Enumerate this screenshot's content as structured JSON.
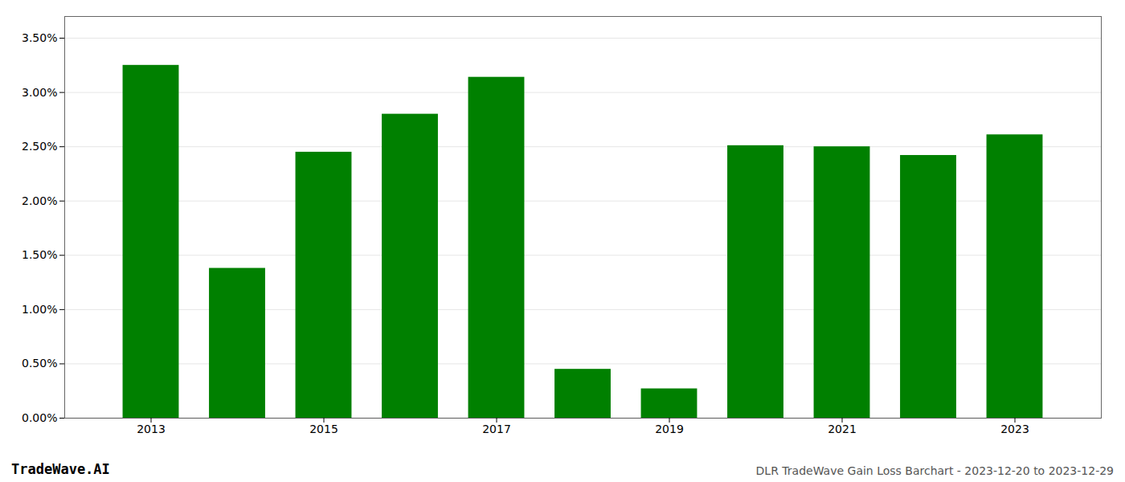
{
  "chart_data": {
    "type": "bar",
    "title": "DLR TradeWave Gain Loss Barchart - 2023-12-20 to 2023-12-29",
    "annotations": [
      "TradeWave.AI"
    ],
    "x": [
      2013,
      2014,
      2015,
      2016,
      2017,
      2018,
      2019,
      2020,
      2021,
      2022,
      2023
    ],
    "values": [
      0.0325,
      0.0138,
      0.0245,
      0.028,
      0.0314,
      0.0045,
      0.0027,
      0.0251,
      0.025,
      0.0242,
      0.0261
    ],
    "color": "#008000",
    "xlim": [
      2012.0,
      2024.0
    ],
    "xticks": [
      2013,
      2015,
      2017,
      2019,
      2021,
      2023
    ],
    "ylim": [
      0,
      0.037
    ],
    "yticks": [
      {
        "value": 0.0,
        "label": "0.00%"
      },
      {
        "value": 0.005,
        "label": "0.50%"
      },
      {
        "value": 0.01,
        "label": "1.00%"
      },
      {
        "value": 0.015,
        "label": "1.50%"
      },
      {
        "value": 0.02,
        "label": "2.00%"
      },
      {
        "value": 0.025,
        "label": "2.50%"
      },
      {
        "value": 0.03,
        "label": "3.00%"
      },
      {
        "value": 0.035,
        "label": "3.50%"
      }
    ],
    "grid": true
  }
}
